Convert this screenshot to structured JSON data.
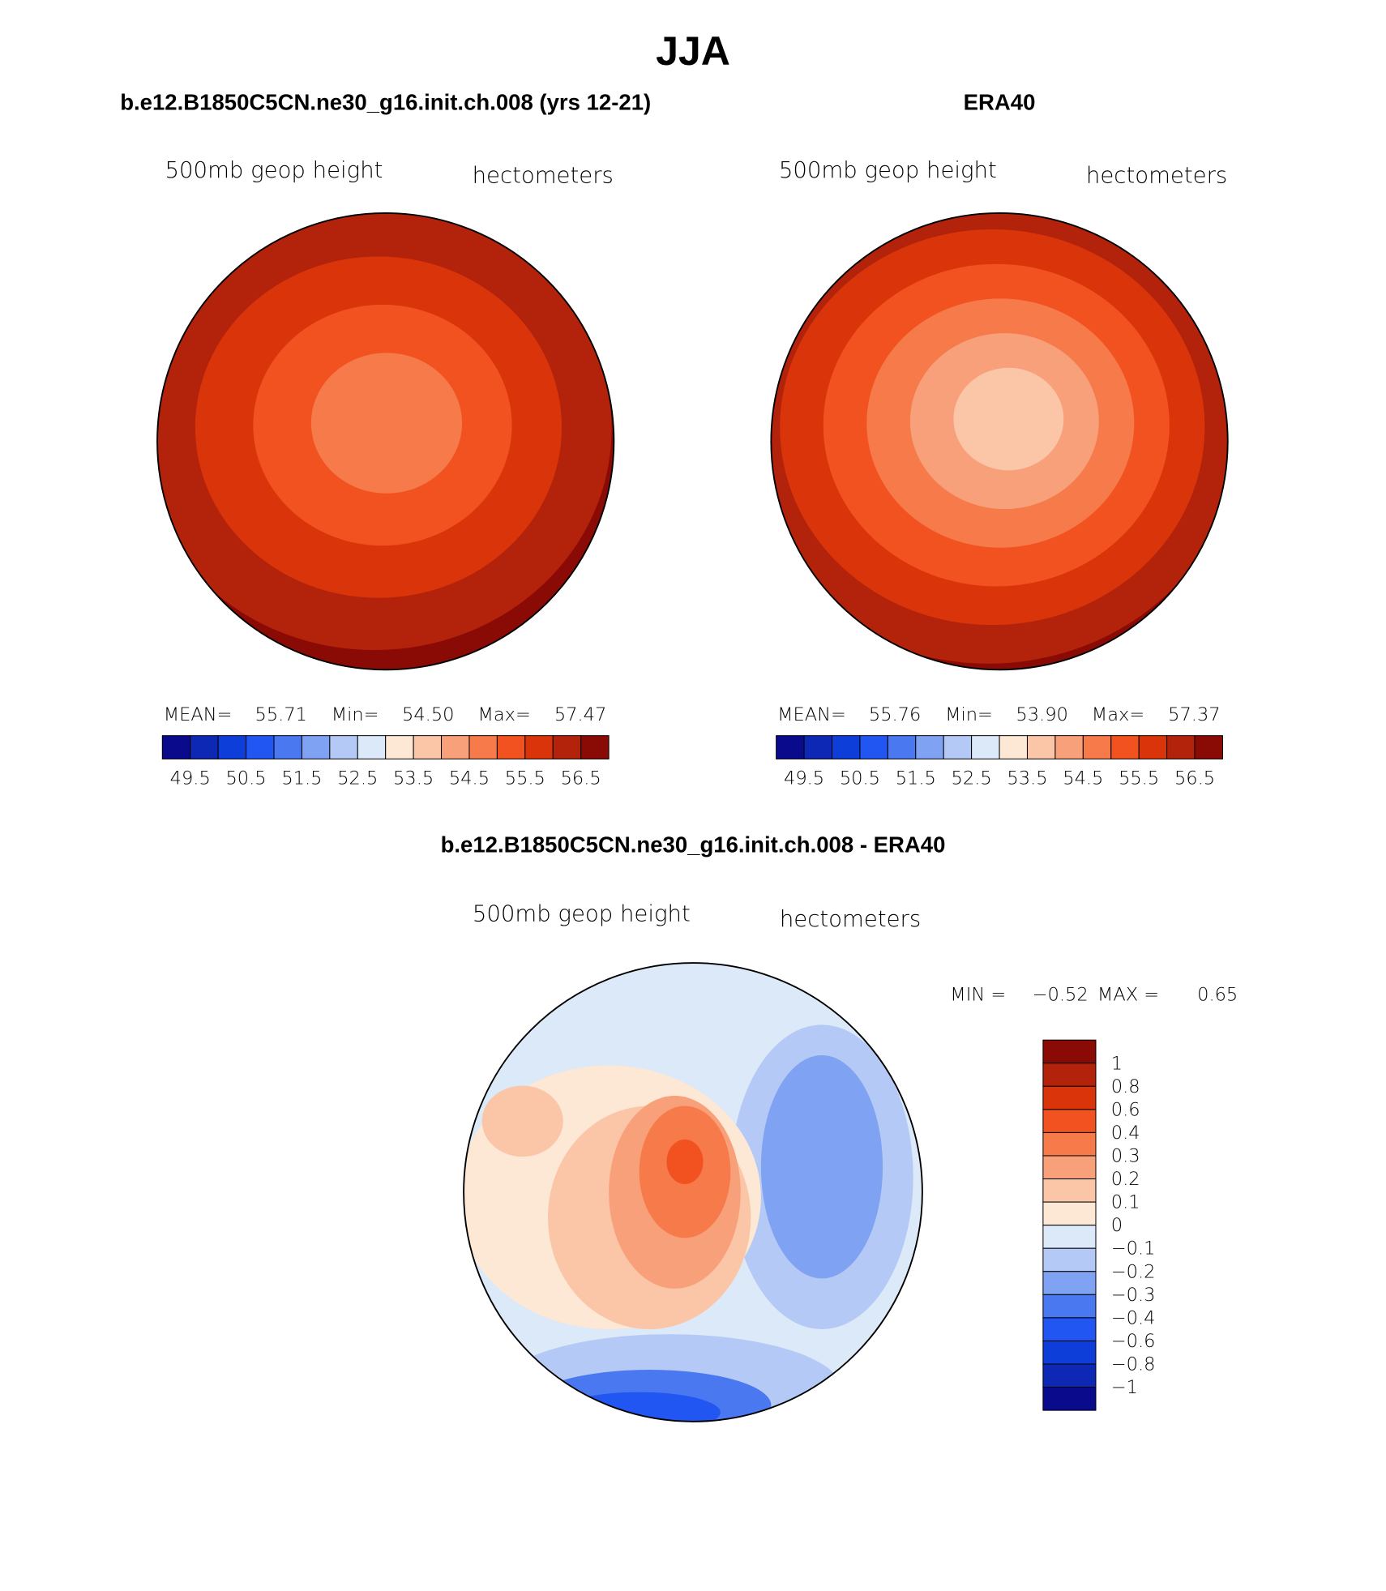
{
  "title": "JJA",
  "panels": [
    {
      "title": "b.e12.B1850C5CN.ne30_g16.init.ch.008 (yrs 12-21)",
      "left_label": "500mb geop height",
      "right_label": "hectometers",
      "stats": [
        "MEAN=",
        "55.71",
        "Min=",
        "54.50",
        "Max=",
        "57.47"
      ],
      "colorbar_labels": [
        "49.5",
        "50.5",
        "51.5",
        "52.5",
        "53.5",
        "54.5",
        "55.5",
        "56.5"
      ]
    },
    {
      "title": "ERA40",
      "left_label": "500mb geop height",
      "right_label": "hectometers",
      "stats": [
        "MEAN=",
        "55.76",
        "Min=",
        "53.90",
        "Max=",
        "57.37"
      ],
      "colorbar_labels": [
        "49.5",
        "50.5",
        "51.5",
        "52.5",
        "53.5",
        "54.5",
        "55.5",
        "56.5"
      ]
    },
    {
      "title": "b.e12.B1850C5CN.ne30_g16.init.ch.008 - ERA40",
      "left_label": "500mb geop height",
      "right_label": "hectometers",
      "stats": [
        "MIN =",
        "−0.52",
        "MAX =",
        "0.65"
      ],
      "colorbar_labels": [
        "1",
        "0.8",
        "0.6",
        "0.4",
        "0.3",
        "0.2",
        "0.1",
        "0",
        "−0.1",
        "−0.2",
        "−0.3",
        "−0.4",
        "−0.6",
        "−0.8",
        "−1"
      ]
    }
  ],
  "colors": [
    "#0a0a8c",
    "#0c28b4",
    "#0e3ed9",
    "#2256f2",
    "#4a78f0",
    "#7fa2f2",
    "#b4c9f5",
    "#dce9f8",
    "#fde7d5",
    "#fbc6a8",
    "#f8a07a",
    "#f67a4a",
    "#f2521f",
    "#da350a",
    "#b3220a",
    "#8a0a05"
  ]
}
